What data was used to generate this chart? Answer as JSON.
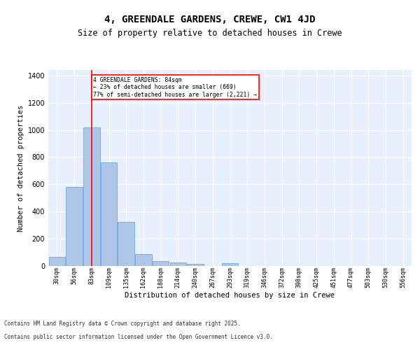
{
  "title": "4, GREENDALE GARDENS, CREWE, CW1 4JD",
  "subtitle": "Size of property relative to detached houses in Crewe",
  "xlabel": "Distribution of detached houses by size in Crewe",
  "ylabel": "Number of detached properties",
  "categories": [
    "30sqm",
    "56sqm",
    "83sqm",
    "109sqm",
    "135sqm",
    "162sqm",
    "188sqm",
    "214sqm",
    "240sqm",
    "267sqm",
    "293sqm",
    "319sqm",
    "346sqm",
    "372sqm",
    "398sqm",
    "425sqm",
    "451sqm",
    "477sqm",
    "503sqm",
    "530sqm",
    "556sqm"
  ],
  "values": [
    65,
    580,
    1020,
    760,
    325,
    90,
    38,
    25,
    15,
    0,
    20,
    0,
    0,
    0,
    0,
    0,
    0,
    0,
    0,
    0,
    0
  ],
  "bar_color": "#aec6e8",
  "bar_edge_color": "#5a9fd4",
  "red_line_index": 2,
  "red_line_label": "4 GREENDALE GARDENS: 84sqm",
  "annotation_line2": "← 23% of detached houses are smaller (669)",
  "annotation_line3": "77% of semi-detached houses are larger (2,221) →",
  "ylim": [
    0,
    1440
  ],
  "yticks": [
    0,
    200,
    400,
    600,
    800,
    1000,
    1200,
    1400
  ],
  "bg_color": "#e8f0fe",
  "grid_color": "#ffffff",
  "title_fontsize": 10,
  "subtitle_fontsize": 8.5,
  "axis_label_fontsize": 7.5,
  "tick_fontsize": 6,
  "footer_fontsize": 5.5,
  "footer_line1": "Contains HM Land Registry data © Crown copyright and database right 2025.",
  "footer_line2": "Contains public sector information licensed under the Open Government Licence v3.0."
}
